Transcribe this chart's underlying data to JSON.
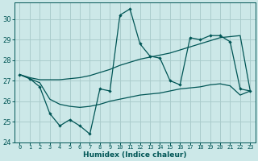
{
  "xlabel": "Humidex (Indice chaleur)",
  "xlim": [
    -0.5,
    23.5
  ],
  "ylim": [
    24.0,
    30.8
  ],
  "yticks": [
    24,
    25,
    26,
    27,
    28,
    29,
    30
  ],
  "xtick_labels": [
    "0",
    "1",
    "2",
    "3",
    "4",
    "5",
    "6",
    "7",
    "8",
    "9",
    "10",
    "11",
    "12",
    "13",
    "14",
    "15",
    "16",
    "17",
    "18",
    "19",
    "20",
    "21",
    "22",
    "23"
  ],
  "bg_color": "#cce8e8",
  "grid_color": "#aacccc",
  "line_color": "#005555",
  "line1_y": [
    27.3,
    27.1,
    26.7,
    25.4,
    24.8,
    25.1,
    24.8,
    24.4,
    26.6,
    26.5,
    30.2,
    30.5,
    28.8,
    28.2,
    28.1,
    27.0,
    26.8,
    29.1,
    29.0,
    29.2,
    29.2,
    28.9,
    26.6,
    26.5
  ],
  "line2_y": [
    27.3,
    27.15,
    27.05,
    27.05,
    27.05,
    27.1,
    27.15,
    27.25,
    27.4,
    27.55,
    27.75,
    27.9,
    28.05,
    28.15,
    28.25,
    28.35,
    28.5,
    28.65,
    28.8,
    28.95,
    29.1,
    29.15,
    29.2,
    26.5
  ],
  "line3_y": [
    27.3,
    27.1,
    26.9,
    26.1,
    25.85,
    25.75,
    25.7,
    25.75,
    25.85,
    26.0,
    26.1,
    26.2,
    26.3,
    26.35,
    26.4,
    26.5,
    26.6,
    26.65,
    26.7,
    26.8,
    26.85,
    26.75,
    26.3,
    26.5
  ]
}
